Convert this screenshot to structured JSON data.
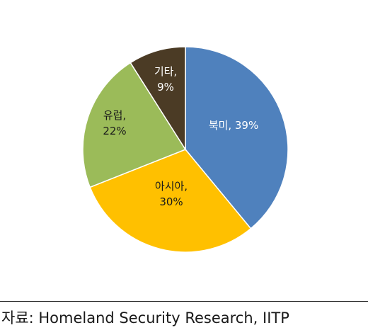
{
  "chart_data": {
    "type": "pie",
    "title": "",
    "slices": [
      {
        "label": "북미",
        "value": 39,
        "value_label": "39%",
        "color": "#4f81bd",
        "text_color": "#ffffff"
      },
      {
        "label": "아시아",
        "value": 30,
        "value_label": "30%",
        "color": "#ffc000",
        "text_color": "#1a1a1a"
      },
      {
        "label": "유럽",
        "value": 22,
        "value_label": "22%",
        "color": "#9bbb59",
        "text_color": "#1a1a1a"
      },
      {
        "label": "기타",
        "value": 9,
        "value_label": "9%",
        "color": "#4b3b25",
        "text_color": "#ffffff"
      }
    ],
    "start": "12 o'clock",
    "direction": "clockwise",
    "legend": "none"
  },
  "source": {
    "text": "자료: Homeland Security Research, IITP"
  }
}
